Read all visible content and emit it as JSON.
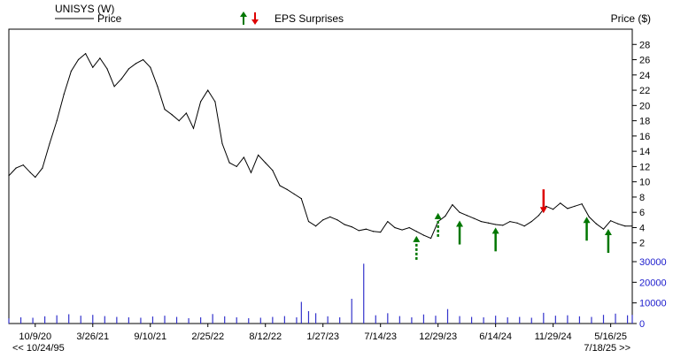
{
  "header": {
    "ticker_title": "UNISYS (W)",
    "price_legend_label": "Price",
    "eps_legend_label": "EPS Surprises",
    "price_axis_label": "Price ($)"
  },
  "footer": {
    "range_start": "<< 10/24/95",
    "range_end": "7/18/25 >>"
  },
  "colors": {
    "price_line": "#000000",
    "volume_bars": "#3333cc",
    "axis_text_volume": "#1a1acc",
    "eps_positive": "#007700",
    "eps_negative": "#dd0000",
    "frame": "#000000"
  },
  "chart_data": [
    {
      "type": "line",
      "title": "UNISYS (W)",
      "xlabel": "",
      "ylabel": "Price ($)",
      "x_tick_labels": [
        "10/9/20",
        "3/26/21",
        "9/10/21",
        "2/25/22",
        "8/12/22",
        "1/27/23",
        "7/14/23",
        "12/29/23",
        "6/14/24",
        "11/29/24",
        "5/16/25"
      ],
      "x_tick_dates": [
        "2020-10-09",
        "2021-03-26",
        "2021-09-10",
        "2022-02-25",
        "2022-08-12",
        "2023-01-27",
        "2023-07-14",
        "2023-12-29",
        "2024-06-14",
        "2024-11-29",
        "2025-05-16"
      ],
      "xlim": [
        "2020-07-24",
        "2025-07-18"
      ],
      "ylim": [
        0,
        30
      ],
      "y_ticks": [
        2,
        4,
        6,
        8,
        10,
        12,
        14,
        16,
        18,
        20,
        22,
        24,
        26,
        28
      ],
      "grid": false,
      "series": [
        {
          "name": "Price",
          "x": [
            "2020-07-24",
            "2020-08-14",
            "2020-09-04",
            "2020-09-25",
            "2020-10-09",
            "2020-10-30",
            "2020-11-20",
            "2020-12-11",
            "2021-01-01",
            "2021-01-22",
            "2021-02-12",
            "2021-03-05",
            "2021-03-26",
            "2021-04-16",
            "2021-05-07",
            "2021-05-28",
            "2021-06-18",
            "2021-07-09",
            "2021-07-30",
            "2021-08-20",
            "2021-09-10",
            "2021-10-01",
            "2021-10-22",
            "2021-11-12",
            "2021-12-03",
            "2021-12-24",
            "2022-01-14",
            "2022-02-04",
            "2022-02-25",
            "2022-03-18",
            "2022-04-08",
            "2022-04-29",
            "2022-05-20",
            "2022-06-10",
            "2022-07-01",
            "2022-07-22",
            "2022-08-12",
            "2022-09-02",
            "2022-09-23",
            "2022-10-14",
            "2022-11-04",
            "2022-11-25",
            "2022-12-16",
            "2023-01-06",
            "2023-01-27",
            "2023-02-17",
            "2023-03-10",
            "2023-03-31",
            "2023-04-21",
            "2023-05-12",
            "2023-06-02",
            "2023-06-23",
            "2023-07-14",
            "2023-08-04",
            "2023-08-25",
            "2023-09-15",
            "2023-10-06",
            "2023-10-27",
            "2023-11-17",
            "2023-12-08",
            "2023-12-29",
            "2024-01-19",
            "2024-02-09",
            "2024-03-01",
            "2024-03-22",
            "2024-04-12",
            "2024-05-03",
            "2024-05-24",
            "2024-06-14",
            "2024-07-05",
            "2024-07-26",
            "2024-08-16",
            "2024-09-06",
            "2024-09-27",
            "2024-10-18",
            "2024-11-08",
            "2024-11-29",
            "2024-12-20",
            "2025-01-10",
            "2025-01-31",
            "2025-02-21",
            "2025-03-14",
            "2025-04-04",
            "2025-04-25",
            "2025-05-16",
            "2025-06-06",
            "2025-06-27",
            "2025-07-18"
          ],
          "values": [
            10.8,
            11.8,
            12.2,
            11.2,
            10.6,
            11.8,
            15.0,
            18.0,
            21.5,
            24.5,
            26.0,
            26.8,
            25.0,
            26.2,
            24.8,
            22.5,
            23.5,
            24.8,
            25.5,
            26.0,
            25.0,
            22.5,
            19.5,
            18.8,
            18.0,
            19.0,
            17.0,
            20.5,
            22.0,
            20.5,
            15.0,
            12.5,
            12.0,
            13.2,
            11.2,
            13.5,
            12.5,
            11.5,
            9.5,
            9.0,
            8.4,
            7.8,
            4.8,
            4.2,
            5.0,
            5.4,
            5.0,
            4.4,
            4.1,
            3.6,
            3.8,
            3.5,
            3.4,
            4.8,
            4.0,
            3.7,
            4.0,
            3.5,
            3.0,
            2.6,
            4.8,
            5.5,
            7.0,
            6.0,
            5.6,
            5.2,
            4.8,
            4.6,
            4.4,
            4.3,
            4.8,
            4.6,
            4.2,
            4.8,
            5.6,
            6.8,
            6.4,
            7.2,
            6.5,
            6.8,
            7.1,
            5.4,
            4.5,
            3.8,
            4.9,
            4.5,
            4.2,
            4.2
          ]
        }
      ],
      "eps_surprises": [
        {
          "date": "2023-10-27",
          "direction": "up",
          "style": "dashed",
          "price": 2.8
        },
        {
          "date": "2023-12-29",
          "direction": "up",
          "style": "dashed",
          "price": 5.8
        },
        {
          "date": "2024-03-01",
          "direction": "up",
          "style": "solid",
          "price": 4.8
        },
        {
          "date": "2024-06-14",
          "direction": "up",
          "style": "solid",
          "price": 3.9
        },
        {
          "date": "2024-11-01",
          "direction": "down",
          "style": "solid",
          "price": 6.0
        },
        {
          "date": "2025-03-07",
          "direction": "up",
          "style": "solid",
          "price": 5.3
        },
        {
          "date": "2025-05-09",
          "direction": "up",
          "style": "solid",
          "price": 3.7
        }
      ]
    },
    {
      "type": "bar",
      "title": "",
      "ylabel": "",
      "ylim": [
        0,
        30000
      ],
      "y_ticks": [
        0,
        10000,
        20000,
        30000
      ],
      "grid": false,
      "series": [
        {
          "name": "Volume",
          "x": [
            "2020-07-24",
            "2020-08-28",
            "2020-10-02",
            "2020-11-06",
            "2020-12-11",
            "2021-01-15",
            "2021-02-19",
            "2021-03-26",
            "2021-04-30",
            "2021-06-04",
            "2021-07-09",
            "2021-08-13",
            "2021-09-17",
            "2021-10-22",
            "2021-11-26",
            "2021-12-31",
            "2022-02-04",
            "2022-03-11",
            "2022-04-15",
            "2022-05-20",
            "2022-06-24",
            "2022-07-29",
            "2022-09-02",
            "2022-10-07",
            "2022-11-11",
            "2022-11-25",
            "2022-12-16",
            "2023-01-06",
            "2023-02-10",
            "2023-03-17",
            "2023-04-21",
            "2023-05-26",
            "2023-06-30",
            "2023-08-04",
            "2023-09-08",
            "2023-10-13",
            "2023-11-17",
            "2023-12-22",
            "2024-01-26",
            "2024-03-01",
            "2024-04-05",
            "2024-05-10",
            "2024-06-14",
            "2024-07-19",
            "2024-08-23",
            "2024-09-27",
            "2024-11-01",
            "2024-12-06",
            "2025-01-10",
            "2025-02-14",
            "2025-03-21",
            "2025-04-25",
            "2025-05-30",
            "2025-07-04",
            "2025-07-18"
          ],
          "values": [
            2500,
            3000,
            2800,
            3500,
            4000,
            4500,
            3800,
            4200,
            3600,
            3200,
            3000,
            2800,
            3400,
            3800,
            3200,
            2600,
            3000,
            4600,
            3500,
            3000,
            2600,
            2800,
            3200,
            3600,
            3000,
            10500,
            6000,
            5000,
            3500,
            3000,
            12000,
            29000,
            4000,
            5000,
            3600,
            3000,
            4400,
            3800,
            7000,
            3600,
            3200,
            3000,
            3800,
            3000,
            3200,
            2800,
            5200,
            3800,
            4000,
            3500,
            3200,
            4200,
            4800,
            4000,
            4200
          ]
        }
      ]
    }
  ]
}
